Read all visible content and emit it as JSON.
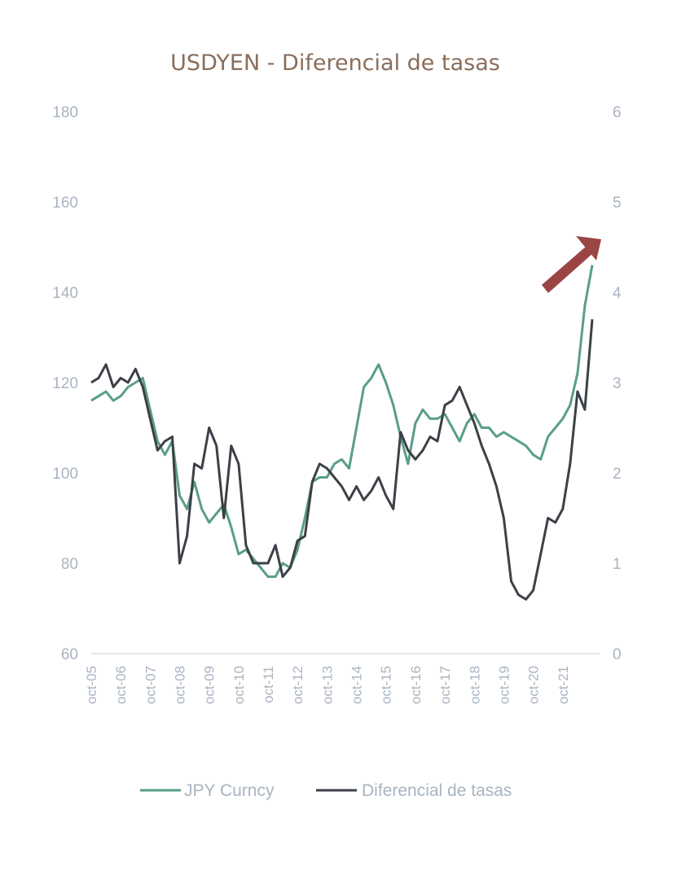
{
  "chart_data": {
    "type": "line",
    "title": "USDYEN - Diferencial de tasas",
    "xlabel": "",
    "ylabel": "",
    "ylim_left": [
      60,
      180
    ],
    "ylim_right": [
      0,
      6
    ],
    "yticks_left": [
      "60",
      "80",
      "100",
      "120",
      "140",
      "160",
      "180"
    ],
    "yticks_right": [
      "0",
      "1",
      "2",
      "3",
      "4",
      "5",
      "6"
    ],
    "x_tick_labels": [
      "oct-05",
      "oct-06",
      "oct-07",
      "oct-08",
      "oct-09",
      "oct-10",
      "oct-11",
      "oct-12",
      "oct-13",
      "oct-14",
      "oct-15",
      "oct-16",
      "oct-17",
      "oct-18",
      "oct-19",
      "oct-20",
      "oct-21"
    ],
    "x_range": [
      2005.75,
      2023.0
    ],
    "grid": false,
    "legend_position": "bottom",
    "annotation": "red arrow pointing up-right near the end of the series",
    "series": [
      {
        "name": "JPY Curncy",
        "axis": "left",
        "color": "#5a9e87",
        "x": [
          2005.75,
          2006.0,
          2006.25,
          2006.5,
          2006.75,
          2007.0,
          2007.25,
          2007.5,
          2007.75,
          2008.0,
          2008.25,
          2008.5,
          2008.75,
          2009.0,
          2009.25,
          2009.5,
          2009.75,
          2010.0,
          2010.25,
          2010.5,
          2010.75,
          2011.0,
          2011.25,
          2011.5,
          2011.75,
          2012.0,
          2012.25,
          2012.5,
          2012.75,
          2013.0,
          2013.25,
          2013.5,
          2013.75,
          2014.0,
          2014.25,
          2014.5,
          2014.75,
          2015.0,
          2015.25,
          2015.5,
          2015.75,
          2016.0,
          2016.25,
          2016.5,
          2016.75,
          2017.0,
          2017.25,
          2017.5,
          2017.75,
          2018.0,
          2018.25,
          2018.5,
          2018.75,
          2019.0,
          2019.25,
          2019.5,
          2019.75,
          2020.0,
          2020.25,
          2020.5,
          2020.75,
          2021.0,
          2021.25,
          2021.5,
          2021.75,
          2022.0,
          2022.25,
          2022.5,
          2022.75
        ],
        "values": [
          116,
          117,
          118,
          116,
          117,
          119,
          120,
          121,
          114,
          107,
          104,
          107,
          95,
          92,
          98,
          92,
          89,
          91,
          93,
          88,
          82,
          83,
          81,
          79,
          77,
          77,
          80,
          79,
          83,
          90,
          98,
          99,
          99,
          102,
          103,
          101,
          110,
          119,
          121,
          124,
          120,
          115,
          108,
          102,
          111,
          114,
          112,
          112,
          113,
          110,
          107,
          111,
          113,
          110,
          110,
          108,
          109,
          108,
          107,
          106,
          104,
          103,
          108,
          110,
          112,
          115,
          122,
          137,
          146
        ]
      },
      {
        "name": "Diferencial de tasas",
        "axis": "right",
        "color": "#3c4048",
        "x": [
          2005.75,
          2006.0,
          2006.25,
          2006.5,
          2006.75,
          2007.0,
          2007.25,
          2007.5,
          2007.75,
          2008.0,
          2008.25,
          2008.5,
          2008.75,
          2009.0,
          2009.25,
          2009.5,
          2009.75,
          2010.0,
          2010.25,
          2010.5,
          2010.75,
          2011.0,
          2011.25,
          2011.5,
          2011.75,
          2012.0,
          2012.25,
          2012.5,
          2012.75,
          2013.0,
          2013.25,
          2013.5,
          2013.75,
          2014.0,
          2014.25,
          2014.5,
          2014.75,
          2015.0,
          2015.25,
          2015.5,
          2015.75,
          2016.0,
          2016.25,
          2016.5,
          2016.75,
          2017.0,
          2017.25,
          2017.5,
          2017.75,
          2018.0,
          2018.25,
          2018.5,
          2018.75,
          2019.0,
          2019.25,
          2019.5,
          2019.75,
          2020.0,
          2020.25,
          2020.5,
          2020.75,
          2021.0,
          2021.25,
          2021.5,
          2021.75,
          2022.0,
          2022.25,
          2022.5,
          2022.75
        ],
        "values": [
          3.0,
          3.05,
          3.2,
          2.95,
          3.05,
          3.0,
          3.15,
          2.95,
          2.6,
          2.25,
          2.35,
          2.4,
          1.0,
          1.3,
          2.1,
          2.05,
          2.5,
          2.3,
          1.5,
          2.3,
          2.1,
          1.2,
          1.0,
          1.0,
          1.0,
          1.2,
          0.85,
          0.95,
          1.25,
          1.3,
          1.9,
          2.1,
          2.05,
          1.95,
          1.85,
          1.7,
          1.85,
          1.7,
          1.8,
          1.95,
          1.75,
          1.6,
          2.45,
          2.25,
          2.15,
          2.25,
          2.4,
          2.35,
          2.75,
          2.8,
          2.95,
          2.75,
          2.55,
          2.3,
          2.1,
          1.85,
          1.5,
          0.8,
          0.65,
          0.6,
          0.7,
          1.1,
          1.5,
          1.45,
          1.6,
          2.1,
          2.9,
          2.7,
          3.7
        ]
      }
    ]
  }
}
